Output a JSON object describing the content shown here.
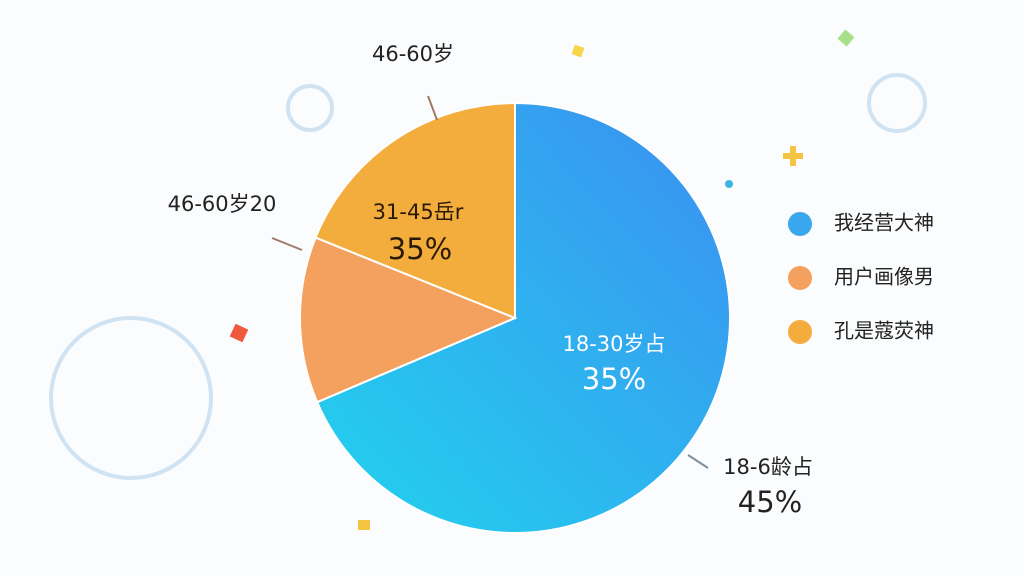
{
  "chart_data": {
    "type": "pie",
    "categories": [
      "我经营大神",
      "用户画像男",
      "孔是蔻荧神"
    ],
    "values": [
      68.6,
      12.5,
      18.9
    ],
    "colors": [
      "#3aa6ec",
      "#f4a160",
      "#f3ad3c"
    ],
    "annotations": [
      "46-60岁",
      "46-60岁20",
      "31-45岳r",
      "35%",
      "18-30岁占",
      "35%",
      "18-6龄占",
      "45%"
    ],
    "legend": "right"
  }
}
